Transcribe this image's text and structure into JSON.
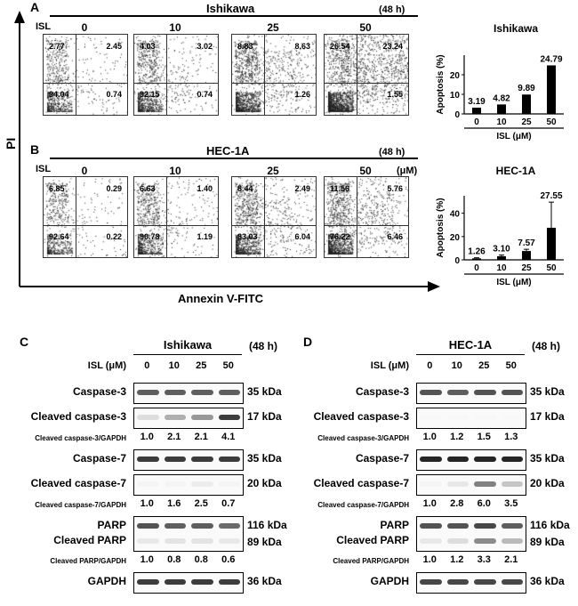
{
  "panel_letters": {
    "A": "A",
    "B": "B",
    "C": "C",
    "D": "D"
  },
  "flow": {
    "y_axis_label": "PI",
    "x_axis_label": "Annexin V-FITC",
    "isl_label": "ISL",
    "unit": "(μM)",
    "time": "(48 h)",
    "doses": [
      "0",
      "10",
      "25",
      "50"
    ],
    "ishikawa": {
      "title": "Ishikawa",
      "plots": [
        {
          "ul": "2.77",
          "ur": "2.45",
          "ll": "94.04",
          "lr": "0.74",
          "density": 0.2
        },
        {
          "ul": "4.03",
          "ur": "3.02",
          "ll": "92.15",
          "lr": "0.74",
          "density": 0.3
        },
        {
          "ul": "8.83",
          "ur": "8.63",
          "ll": "",
          "lr": "1.26",
          "density": 0.55
        },
        {
          "ul": "26.54",
          "ur": "23.24",
          "ll": "",
          "lr": "1.55",
          "density": 0.9
        }
      ]
    },
    "hec1a": {
      "title": "HEC-1A",
      "plots": [
        {
          "ul": "6.85",
          "ur": "0.29",
          "ll": "92.64",
          "lr": "0.22",
          "density": 0.15
        },
        {
          "ul": "6.63",
          "ur": "1.40",
          "ll": "90.78",
          "lr": "1.19",
          "density": 0.25
        },
        {
          "ul": "8.44",
          "ur": "2.49",
          "ll": "83.03",
          "lr": "6.04",
          "density": 0.4
        },
        {
          "ul": "11.56",
          "ur": "5.76",
          "ll": "76.22",
          "lr": "6.46",
          "density": 0.55
        }
      ]
    }
  },
  "chart_data": [
    {
      "type": "bar",
      "title": "Ishikawa",
      "categories": [
        "0",
        "10",
        "25",
        "50"
      ],
      "values": [
        3.19,
        4.82,
        9.89,
        24.79
      ],
      "value_labels": [
        "3.19",
        "4.82",
        "9.89",
        "24.79"
      ],
      "ylabel": "Apoptosis (%)",
      "xlabel": "ISL (μM)",
      "ylim": [
        0,
        30
      ],
      "yticks": [
        0,
        10,
        20
      ],
      "errors": [
        0,
        0,
        0,
        0
      ]
    },
    {
      "type": "bar",
      "title": "HEC-1A",
      "categories": [
        "0",
        "10",
        "25",
        "50"
      ],
      "values": [
        1.26,
        3.1,
        7.57,
        27.55
      ],
      "value_labels": [
        "1.26",
        "3.10",
        "7.57",
        "27.55"
      ],
      "ylabel": "Apoptosis (%)",
      "xlabel": "ISL (μM)",
      "ylim": [
        0,
        55
      ],
      "yticks": [
        0,
        20,
        40
      ],
      "errors": [
        0.5,
        1,
        1.5,
        22
      ]
    }
  ],
  "blots": {
    "isl_label": "ISL (μM)",
    "time": "(48 h)",
    "doses": [
      "0",
      "10",
      "25",
      "50"
    ],
    "C": {
      "title": "Ishikawa",
      "rows": [
        {
          "name": "Caspase-3",
          "kda": "35 kDa",
          "bands": [
            0.7,
            0.7,
            0.7,
            0.7
          ],
          "ratio_label": "",
          "ratios": []
        },
        {
          "name": "Cleaved caspase-3",
          "kda": "17 kDa",
          "bands": [
            0.15,
            0.35,
            0.45,
            0.85
          ],
          "ratio_label": "Cleaved  caspase-3/GAPDH",
          "ratios": [
            "1.0",
            "2.1",
            "2.1",
            "4.1"
          ]
        },
        {
          "name": "Caspase-7",
          "kda": "35 kDa",
          "bands": [
            0.85,
            0.85,
            0.85,
            0.85
          ],
          "ratio_label": "",
          "ratios": []
        },
        {
          "name": "Cleaved caspase-7",
          "kda": "20 kDa",
          "bands": [
            0.05,
            0.05,
            0.08,
            0.05
          ],
          "ratio_label": "Cleaved  caspase-7/GAPDH",
          "ratios": [
            "1.0",
            "1.6",
            "2.5",
            "0.7"
          ]
        },
        {
          "name": "PARP",
          "name2": "Cleaved PARP",
          "kda": "116 kDa",
          "kda2": "89 kDa",
          "bands": [
            0.75,
            0.7,
            0.7,
            0.65
          ],
          "bands2": [
            0.1,
            0.12,
            0.12,
            0.1
          ],
          "ratio_label": "Cleaved  PARP/GAPDH",
          "ratios": [
            "1.0",
            "0.8",
            "0.8",
            "0.6"
          ]
        },
        {
          "name": "GAPDH",
          "kda": "36 kDa",
          "bands": [
            0.85,
            0.85,
            0.85,
            0.85
          ],
          "ratio_label": "",
          "ratios": []
        }
      ]
    },
    "D": {
      "title": "HEC-1A",
      "rows": [
        {
          "name": "Caspase-3",
          "kda": "35 kDa",
          "bands": [
            0.75,
            0.7,
            0.75,
            0.75
          ],
          "ratio_label": "",
          "ratios": []
        },
        {
          "name": "Cleaved caspase-3",
          "kda": "17 kDa",
          "bands": [
            0.03,
            0.03,
            0.03,
            0.03
          ],
          "ratio_label": "Cleaved  caspase-3/GAPDH",
          "ratios": [
            "1.0",
            "1.2",
            "1.5",
            "1.3"
          ]
        },
        {
          "name": "Caspase-7",
          "kda": "35 kDa",
          "bands": [
            0.95,
            0.95,
            0.95,
            0.95
          ],
          "ratio_label": "",
          "ratios": []
        },
        {
          "name": "Cleaved caspase-7",
          "kda": "20 kDa",
          "bands": [
            0.05,
            0.1,
            0.55,
            0.25
          ],
          "ratio_label": "Cleaved  caspase-7/GAPDH",
          "ratios": [
            "1.0",
            "2.8",
            "6.0",
            "3.5"
          ]
        },
        {
          "name": "PARP",
          "name2": "Cleaved PARP",
          "kda": "116 kDa",
          "kda2": "89 kDa",
          "bands": [
            0.75,
            0.75,
            0.8,
            0.7
          ],
          "bands2": [
            0.1,
            0.15,
            0.5,
            0.3
          ],
          "ratio_label": "Cleaved  PARP/GAPDH",
          "ratios": [
            "1.0",
            "1.2",
            "3.3",
            "2.1"
          ]
        },
        {
          "name": "GAPDH",
          "kda": "36 kDa",
          "bands": [
            0.8,
            0.8,
            0.8,
            0.8
          ],
          "ratio_label": "",
          "ratios": []
        }
      ]
    }
  }
}
